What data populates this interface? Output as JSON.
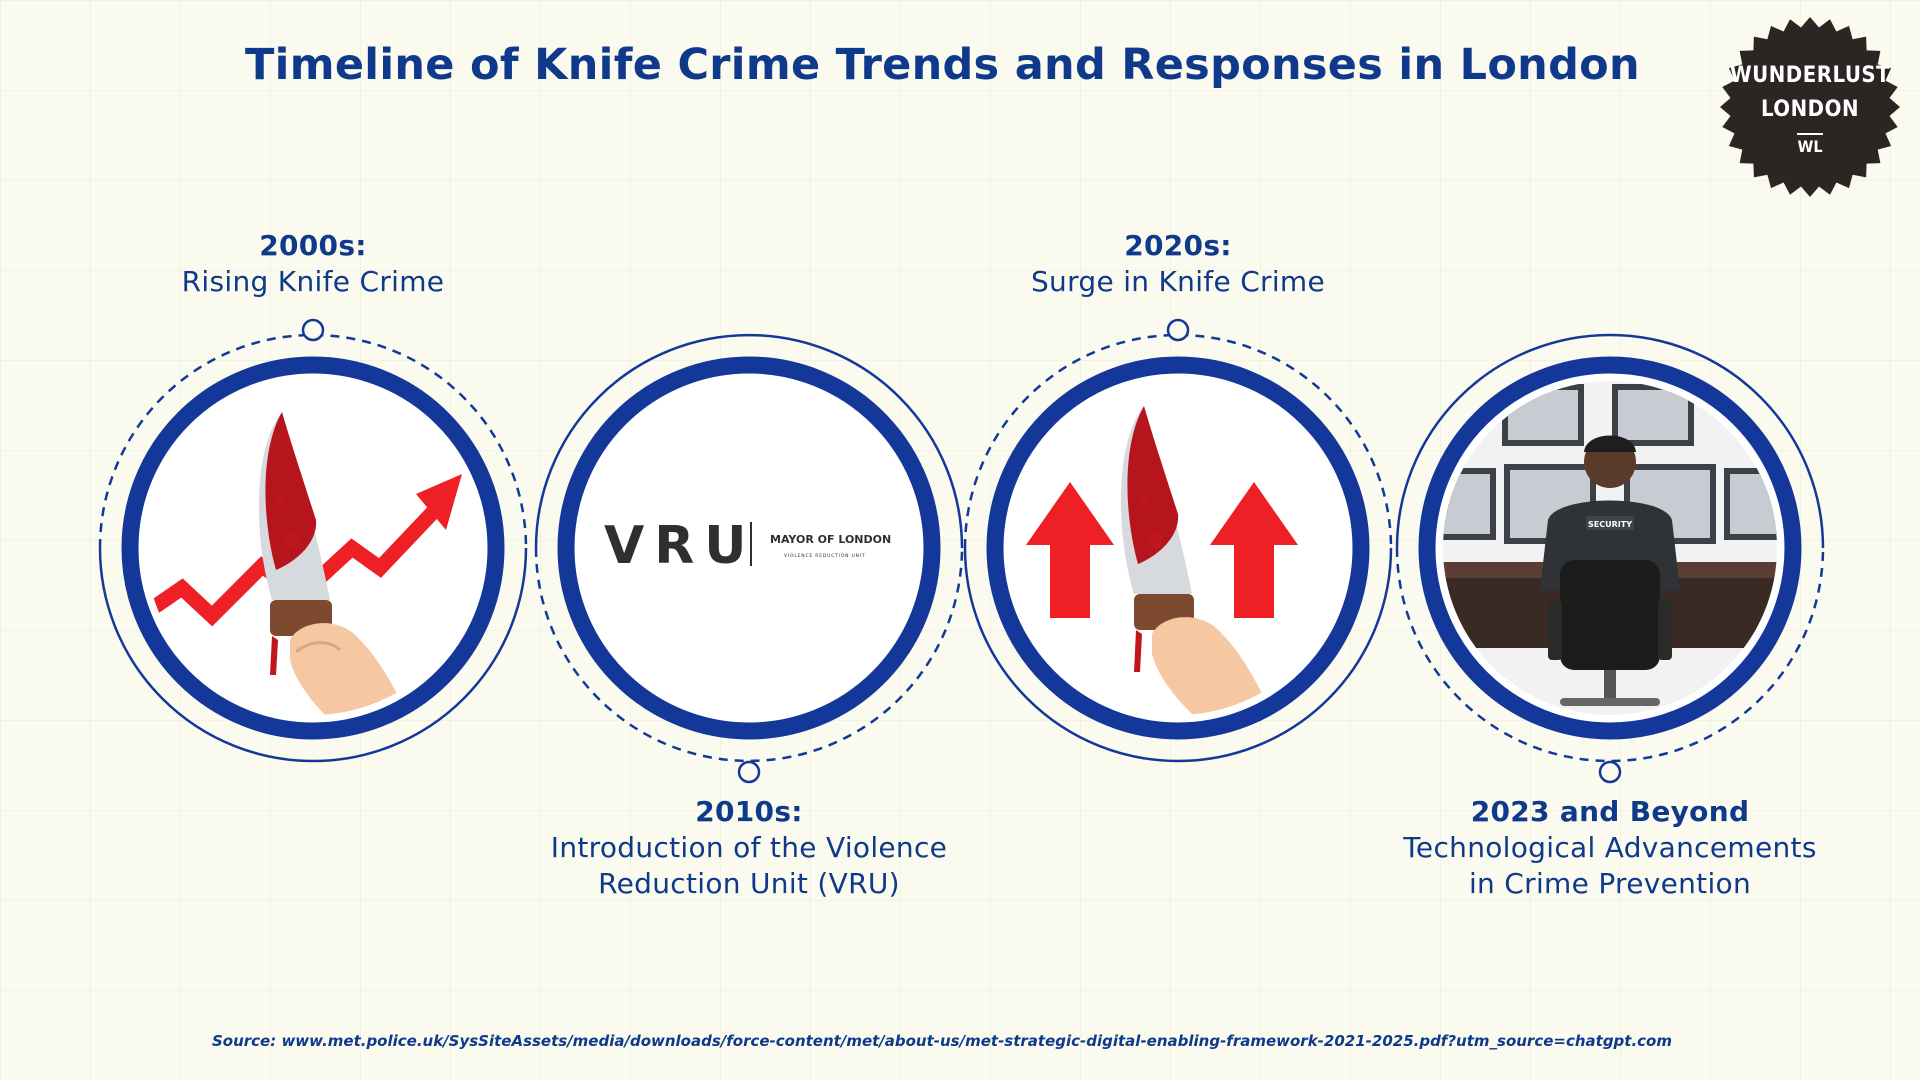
{
  "header": {
    "title": "Timeline of Knife Crime Trends and Responses in London"
  },
  "badge": {
    "line1": "WUNDERLUST",
    "line2": "LONDON",
    "monogram": "WL"
  },
  "timeline": [
    {
      "period": "2000s:",
      "description": "Rising Knife Crime",
      "icon": "bloody-knife-rising-arrow-icon"
    },
    {
      "period": "2010s:",
      "description_line1": "Introduction of the Violence",
      "description_line2": "Reduction Unit (VRU)",
      "logo": {
        "wordmark": "VRU",
        "org": "MAYOR OF LONDON",
        "unit": "VIOLENCE REDUCTION UNIT"
      }
    },
    {
      "period": "2020s:",
      "description": "Surge in Knife Crime",
      "icon": "bloody-knife-up-arrows-icon"
    },
    {
      "period": "2023 and Beyond",
      "description_line1": "Technological Advancements",
      "description_line2": "in Crime Prevention",
      "icon": "security-monitoring-room-icon",
      "jacket_text": "SECURITY"
    }
  ],
  "source": "Source: www.met.police.uk/SysSiteAssets/media/downloads/force-content/met/about-us/met-strategic-digital-enabling-framework-2021-2025.pdf?utm_source=chatgpt.com",
  "colors": {
    "navy": "#0f3a8c",
    "ring": "#13389a",
    "arrow_red": "#ee2026",
    "blood": "#c0161c",
    "background": "#fbfaee"
  }
}
